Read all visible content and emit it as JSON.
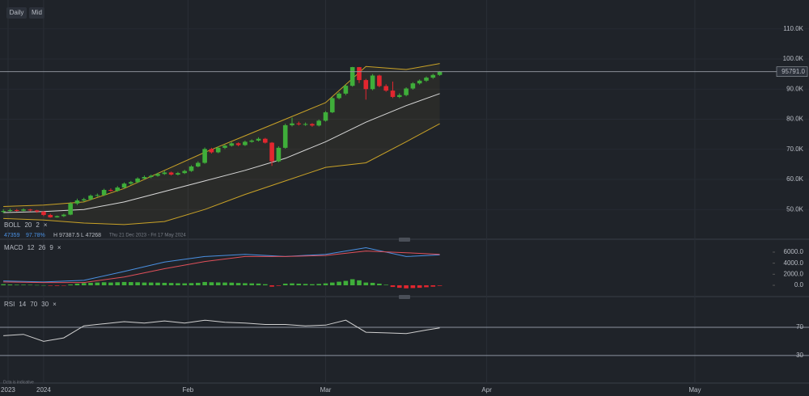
{
  "toolbar": {
    "buttons": [
      "Daily",
      "Mid"
    ]
  },
  "chart_data": [
    {
      "type": "candlestick",
      "indicator": {
        "name": "BOLL",
        "params": [
          20,
          2
        ]
      },
      "stats": [
        "47359",
        "97.78%",
        "H 97387.5",
        "L 47268"
      ],
      "range_label": "Thu 21 Dec 2023 - Fri 17 May 2024",
      "up_color": "#3fae3a",
      "down_color": "#e2262f",
      "ohlc": [
        [
          49200,
          50100,
          48800,
          49500
        ],
        [
          49500,
          50300,
          49200,
          49800
        ],
        [
          49800,
          50200,
          49300,
          49600
        ],
        [
          49600,
          50400,
          49400,
          50000
        ],
        [
          50000,
          50200,
          49400,
          49700
        ],
        [
          49700,
          49900,
          48900,
          49300
        ],
        [
          49300,
          49500,
          47800,
          48200
        ],
        [
          48200,
          48600,
          47268,
          47400
        ],
        [
          47400,
          48000,
          47300,
          47800
        ],
        [
          47800,
          48600,
          47500,
          48300
        ],
        [
          48300,
          52500,
          48100,
          52000
        ],
        [
          52000,
          53600,
          51500,
          53000
        ],
        [
          53000,
          53900,
          52600,
          53400
        ],
        [
          53400,
          55000,
          53100,
          54600
        ],
        [
          54600,
          55300,
          54200,
          54800
        ],
        [
          54800,
          56900,
          54500,
          56500
        ],
        [
          56500,
          57000,
          55900,
          56200
        ],
        [
          56200,
          57800,
          55900,
          57300
        ],
        [
          57300,
          59000,
          57000,
          58600
        ],
        [
          58600,
          59500,
          58200,
          59100
        ],
        [
          59100,
          60700,
          58800,
          60300
        ],
        [
          60300,
          61300,
          60000,
          60800
        ],
        [
          60800,
          61600,
          60400,
          61200
        ],
        [
          61200,
          62200,
          60900,
          61800
        ],
        [
          61800,
          62900,
          61500,
          62300
        ],
        [
          62300,
          62600,
          61300,
          61600
        ],
        [
          61600,
          62500,
          61300,
          62100
        ],
        [
          62100,
          63200,
          61800,
          62800
        ],
        [
          62800,
          64700,
          62500,
          64300
        ],
        [
          64300,
          66000,
          64000,
          65500
        ],
        [
          65500,
          70600,
          65200,
          70100
        ],
        [
          70100,
          70500,
          68600,
          69000
        ],
        [
          69000,
          71000,
          68700,
          70500
        ],
        [
          70500,
          71600,
          70100,
          71200
        ],
        [
          71200,
          72400,
          70900,
          72000
        ],
        [
          72000,
          72300,
          71000,
          71400
        ],
        [
          71400,
          72900,
          71100,
          72500
        ],
        [
          72500,
          73300,
          72200,
          72900
        ],
        [
          72900,
          74000,
          72600,
          73500
        ],
        [
          73500,
          73800,
          71900,
          72200
        ],
        [
          72200,
          72400,
          64500,
          66000
        ],
        [
          66000,
          71000,
          65700,
          70500
        ],
        [
          70500,
          78500,
          70200,
          78000
        ],
        [
          78000,
          80500,
          77600,
          78600
        ],
        [
          78600,
          79200,
          77900,
          78300
        ],
        [
          78300,
          78900,
          77800,
          78400
        ],
        [
          78400,
          78700,
          77500,
          77900
        ],
        [
          77900,
          79900,
          77600,
          79500
        ],
        [
          79500,
          82700,
          79200,
          82300
        ],
        [
          82300,
          87400,
          82000,
          87000
        ],
        [
          87000,
          89000,
          86600,
          88500
        ],
        [
          88500,
          91500,
          88000,
          91100
        ],
        [
          91100,
          97387.5,
          90800,
          97300
        ],
        [
          97300,
          97350,
          92000,
          93000
        ],
        [
          93000,
          93400,
          86500,
          90000
        ],
        [
          90000,
          95000,
          89600,
          94500
        ],
        [
          94500,
          94800,
          90600,
          91000
        ],
        [
          91000,
          91600,
          89100,
          89500
        ],
        [
          89500,
          92500,
          87000,
          87400
        ],
        [
          87400,
          88600,
          87000,
          88000
        ],
        [
          88000,
          90600,
          87600,
          90200
        ],
        [
          90200,
          92300,
          89800,
          91900
        ],
        [
          91900,
          93200,
          91500,
          92800
        ],
        [
          92800,
          94200,
          92400,
          93800
        ],
        [
          93800,
          95100,
          93400,
          94700
        ],
        [
          94700,
          96000,
          94400,
          95791
        ]
      ],
      "bands": {
        "x": [
          0,
          6,
          12,
          18,
          24,
          30,
          36,
          42,
          48,
          54,
          60,
          65
        ],
        "series": [
          {
            "name": "upper",
            "color": "#c9a227",
            "values": [
              51000,
              51500,
              52500,
              57000,
              63000,
              69000,
              74500,
              80000,
              85500,
              97500,
              96500,
              98500
            ]
          },
          {
            "name": "middle",
            "color": "#d9d9d9",
            "values": [
              49000,
              49300,
              50000,
              52500,
              56000,
              59500,
              63000,
              67000,
              72500,
              79000,
              84500,
              88500
            ]
          },
          {
            "name": "lower",
            "color": "#c9a227",
            "values": [
              47000,
              46500,
              45500,
              45000,
              46000,
              50000,
              55000,
              59500,
              64000,
              65500,
              72500,
              78500
            ]
          }
        ]
      },
      "last_price": {
        "value": 95791,
        "label": "95791.0"
      },
      "ylim": [
        40400,
        119600
      ],
      "yticks": [
        {
          "value": 50000,
          "label": "50.0K"
        },
        {
          "value": 60000,
          "label": "60.0K"
        },
        {
          "value": 70000,
          "label": "70.0K"
        },
        {
          "value": 80000,
          "label": "80.0K"
        },
        {
          "value": 90000,
          "label": "90.0K"
        },
        {
          "value": 100000,
          "label": "100.0K"
        },
        {
          "value": 110000,
          "label": "110.0K"
        }
      ],
      "xlim": [
        -0.5,
        120
      ],
      "xticks": [
        {
          "value": 0.7,
          "label": "2023"
        },
        {
          "value": 6,
          "label": "2024"
        },
        {
          "value": 27.5,
          "label": "Feb"
        },
        {
          "value": 48,
          "label": "Mar"
        },
        {
          "value": 72,
          "label": "Apr"
        },
        {
          "value": 103,
          "label": "May"
        }
      ]
    },
    {
      "type": "macd",
      "indicator": {
        "name": "MACD",
        "params": [
          12,
          26,
          9
        ]
      },
      "x": [
        0,
        6,
        12,
        18,
        24,
        30,
        36,
        42,
        48,
        54,
        60,
        65
      ],
      "series": [
        {
          "name": "macd",
          "color": "#4a90e2",
          "values": [
            800,
            600,
            900,
            2500,
            4200,
            5200,
            5600,
            5200,
            5600,
            6800,
            5200,
            5500
          ]
        },
        {
          "name": "signal",
          "color": "#e0505a",
          "values": [
            600,
            500,
            500,
            1500,
            3000,
            4300,
            5200,
            5200,
            5400,
            6200,
            5900,
            5600
          ]
        }
      ],
      "histogram": [
        200,
        150,
        100,
        100,
        80,
        50,
        20,
        -80,
        -100,
        -50,
        150,
        300,
        400,
        450,
        500,
        550,
        500,
        550,
        600,
        580,
        550,
        500,
        500,
        480,
        450,
        420,
        380,
        360,
        400,
        450,
        600,
        550,
        520,
        500,
        480,
        420,
        380,
        350,
        320,
        200,
        -250,
        -100,
        300,
        350,
        300,
        250,
        200,
        250,
        350,
        500,
        650,
        800,
        1100,
        900,
        500,
        450,
        300,
        100,
        -300,
        -450,
        -550,
        -500,
        -450,
        -350,
        -250,
        -100
      ],
      "up_color": "#3fae3a",
      "down_color": "#e2262f",
      "ylim": [
        -1750,
        7750
      ],
      "yticks": [
        {
          "value": 0,
          "label": "0.0"
        },
        {
          "value": 2000,
          "label": "2000.0"
        },
        {
          "value": 4000,
          "label": "4000.0"
        },
        {
          "value": 6000,
          "label": "6000.0"
        }
      ]
    },
    {
      "type": "rsi",
      "indicator": {
        "name": "RSI",
        "params": [
          14,
          70,
          30
        ]
      },
      "x": [
        0,
        3,
        6,
        9,
        12,
        15,
        18,
        21,
        24,
        27,
        30,
        33,
        36,
        39,
        42,
        45,
        48,
        51,
        54,
        57,
        60,
        63,
        65
      ],
      "values": [
        58,
        60,
        50,
        55,
        72,
        75,
        78,
        76,
        79,
        76,
        80,
        77,
        76,
        74,
        74,
        72,
        73,
        80,
        63,
        62,
        61,
        66,
        69
      ],
      "color": "#d0d0d0",
      "ylim": [
        7,
        110
      ],
      "yticks": [
        30,
        70
      ]
    }
  ],
  "footer_note": "Data is indicative"
}
